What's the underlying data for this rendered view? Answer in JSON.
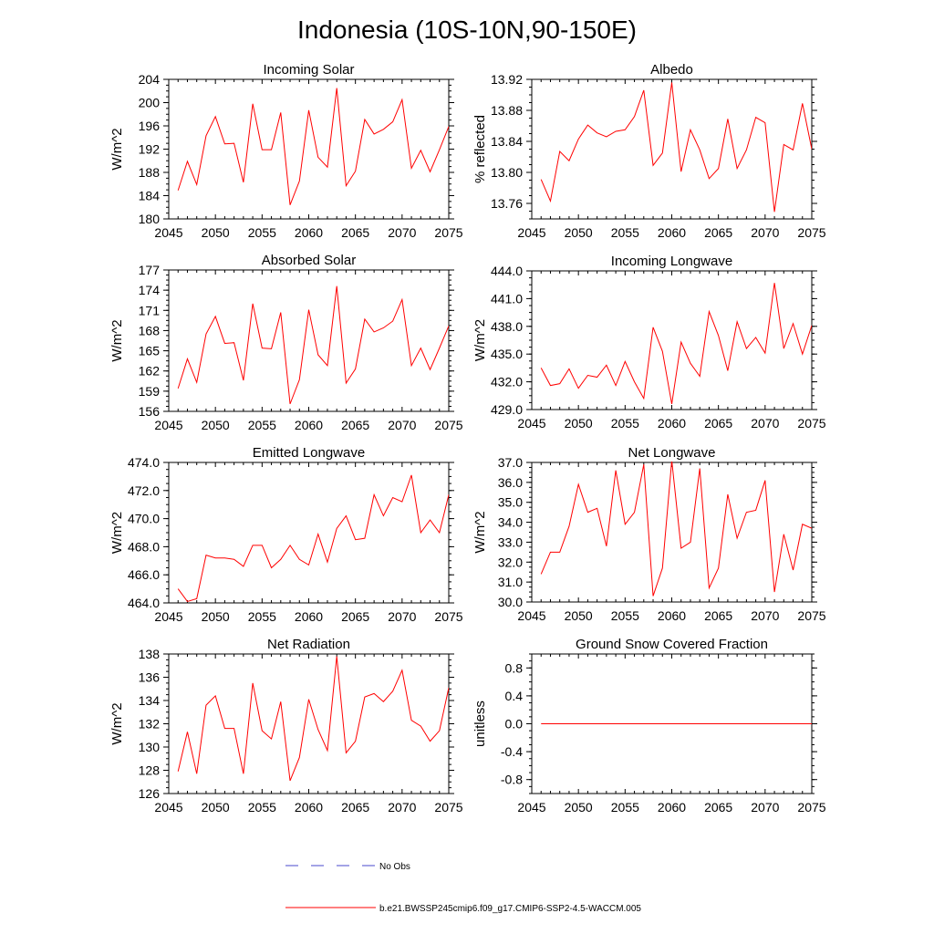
{
  "figure": {
    "title": "Indonesia (10S-10N,90-150E)"
  },
  "colors": {
    "model": "#ff0000",
    "obs": "#4a4acc",
    "axis": "#000000"
  },
  "legend": {
    "obs_label": "No Obs",
    "model_label": "b.e21.BWSSP245cmip6.f09_g17.CMIP6-SSP2-4.5-WACCM.005"
  },
  "chart_data": [
    {
      "type": "line",
      "title": "Incoming Solar",
      "xlabel": "",
      "ylabel": "W/m^2",
      "xlim": [
        2045,
        2075
      ],
      "ylim": [
        180,
        204
      ],
      "xticks": [
        2045,
        2050,
        2055,
        2060,
        2065,
        2070,
        2075
      ],
      "yticks": [
        180,
        184,
        188,
        192,
        196,
        200,
        204
      ],
      "ytick_labels": [
        "180",
        "184",
        "188",
        "192",
        "196",
        "200",
        "204"
      ],
      "series": [
        {
          "name": "b.e21.BWSSP245cmip6.f09_g17.CMIP6-SSP2-4.5-WACCM.005",
          "x": [
            2046,
            2047,
            2048,
            2049,
            2050,
            2051,
            2052,
            2053,
            2054,
            2055,
            2056,
            2057,
            2058,
            2059,
            2060,
            2061,
            2062,
            2063,
            2064,
            2065,
            2066,
            2067,
            2068,
            2069,
            2070,
            2071,
            2072,
            2073,
            2074,
            2075
          ],
          "y": [
            184.9,
            189.9,
            185.9,
            194.3,
            197.6,
            192.9,
            193.0,
            186.3,
            199.8,
            191.9,
            191.9,
            198.3,
            182.4,
            186.5,
            198.7,
            190.6,
            188.9,
            202.5,
            185.7,
            188.2,
            197.1,
            194.6,
            195.4,
            196.7,
            200.5,
            188.7,
            191.8,
            188.1,
            191.9,
            195.9
          ]
        }
      ]
    },
    {
      "type": "line",
      "title": "Albedo",
      "xlabel": "",
      "ylabel": "% reflected",
      "xlim": [
        2045,
        2075
      ],
      "ylim": [
        13.74,
        13.92
      ],
      "xticks": [
        2045,
        2050,
        2055,
        2060,
        2065,
        2070,
        2075
      ],
      "yticks": [
        13.76,
        13.8,
        13.84,
        13.88,
        13.92
      ],
      "ytick_labels": [
        "13.76",
        "13.80",
        "13.84",
        "13.88",
        "13.92"
      ],
      "series": [
        {
          "name": "b.e21.BWSSP245cmip6.f09_g17.CMIP6-SSP2-4.5-WACCM.005",
          "x": [
            2046,
            2047,
            2048,
            2049,
            2050,
            2051,
            2052,
            2053,
            2054,
            2055,
            2056,
            2057,
            2058,
            2059,
            2060,
            2061,
            2062,
            2063,
            2064,
            2065,
            2066,
            2067,
            2068,
            2069,
            2070,
            2071,
            2072,
            2073,
            2074,
            2075
          ],
          "y": [
            13.791,
            13.763,
            13.827,
            13.815,
            13.843,
            13.861,
            13.851,
            13.846,
            13.853,
            13.855,
            13.872,
            13.906,
            13.809,
            13.825,
            13.916,
            13.801,
            13.855,
            13.829,
            13.792,
            13.805,
            13.869,
            13.805,
            13.829,
            13.871,
            13.864,
            13.749,
            13.836,
            13.829,
            13.889,
            13.83
          ]
        }
      ]
    },
    {
      "type": "line",
      "title": "Absorbed Solar",
      "xlabel": "",
      "ylabel": "W/m^2",
      "xlim": [
        2045,
        2075
      ],
      "ylim": [
        156,
        177
      ],
      "xticks": [
        2045,
        2050,
        2055,
        2060,
        2065,
        2070,
        2075
      ],
      "yticks": [
        156,
        159,
        162,
        165,
        168,
        171,
        174,
        177
      ],
      "ytick_labels": [
        "156",
        "159",
        "162",
        "165",
        "168",
        "171",
        "174",
        "177"
      ],
      "series": [
        {
          "name": "b.e21.BWSSP245cmip6.f09_g17.CMIP6-SSP2-4.5-WACCM.005",
          "x": [
            2046,
            2047,
            2048,
            2049,
            2050,
            2051,
            2052,
            2053,
            2054,
            2055,
            2056,
            2057,
            2058,
            2059,
            2060,
            2061,
            2062,
            2063,
            2064,
            2065,
            2066,
            2067,
            2068,
            2069,
            2070,
            2071,
            2072,
            2073,
            2074,
            2075
          ],
          "y": [
            159.4,
            163.8,
            160.3,
            167.5,
            170.1,
            166.1,
            166.2,
            160.6,
            172.0,
            165.4,
            165.3,
            170.7,
            157.1,
            160.7,
            171.1,
            164.4,
            162.8,
            174.6,
            160.2,
            162.3,
            169.7,
            167.8,
            168.4,
            169.4,
            172.6,
            162.8,
            165.4,
            162.2,
            165.4,
            168.7
          ]
        }
      ]
    },
    {
      "type": "line",
      "title": "Incoming Longwave",
      "xlabel": "",
      "ylabel": "W/m^2",
      "xlim": [
        2045,
        2075
      ],
      "ylim": [
        429,
        444
      ],
      "xticks": [
        2045,
        2050,
        2055,
        2060,
        2065,
        2070,
        2075
      ],
      "yticks": [
        429,
        432,
        435,
        438,
        441,
        444
      ],
      "ytick_labels": [
        "429.0",
        "432.0",
        "435.0",
        "438.0",
        "441.0",
        "444.0"
      ],
      "series": [
        {
          "name": "b.e21.BWSSP245cmip6.f09_g17.CMIP6-SSP2-4.5-WACCM.005",
          "x": [
            2046,
            2047,
            2048,
            2049,
            2050,
            2051,
            2052,
            2053,
            2054,
            2055,
            2056,
            2057,
            2058,
            2059,
            2060,
            2061,
            2062,
            2063,
            2064,
            2065,
            2066,
            2067,
            2068,
            2069,
            2070,
            2071,
            2072,
            2073,
            2074,
            2075
          ],
          "y": [
            433.5,
            431.6,
            431.8,
            433.4,
            431.3,
            432.7,
            432.5,
            433.8,
            431.6,
            434.2,
            432.0,
            430.2,
            437.9,
            435.3,
            429.6,
            436.3,
            434.0,
            432.6,
            439.6,
            437.0,
            433.2,
            438.5,
            435.6,
            436.8,
            435.1,
            442.7,
            435.6,
            438.3,
            435.0,
            438.1
          ]
        }
      ]
    },
    {
      "type": "line",
      "title": "Emitted Longwave",
      "xlabel": "",
      "ylabel": "W/m^2",
      "xlim": [
        2045,
        2075
      ],
      "ylim": [
        464,
        474
      ],
      "xticks": [
        2045,
        2050,
        2055,
        2060,
        2065,
        2070,
        2075
      ],
      "yticks": [
        464,
        466,
        468,
        470,
        472,
        474
      ],
      "ytick_labels": [
        "464.0",
        "466.0",
        "468.0",
        "470.0",
        "472.0",
        "474.0"
      ],
      "series": [
        {
          "name": "b.e21.BWSSP245cmip6.f09_g17.CMIP6-SSP2-4.5-WACCM.005",
          "x": [
            2046,
            2047,
            2048,
            2049,
            2050,
            2051,
            2052,
            2053,
            2054,
            2055,
            2056,
            2057,
            2058,
            2059,
            2060,
            2061,
            2062,
            2063,
            2064,
            2065,
            2066,
            2067,
            2068,
            2069,
            2070,
            2071,
            2072,
            2073,
            2074,
            2075
          ],
          "y": [
            465.0,
            464.1,
            464.3,
            467.4,
            467.2,
            467.2,
            467.1,
            466.6,
            468.1,
            468.1,
            466.5,
            467.1,
            468.1,
            467.1,
            466.7,
            468.9,
            466.9,
            469.3,
            470.2,
            468.5,
            468.6,
            471.7,
            470.2,
            471.5,
            471.2,
            473.1,
            469.0,
            469.9,
            469.0,
            471.7
          ]
        }
      ]
    },
    {
      "type": "line",
      "title": "Net Longwave",
      "xlabel": "",
      "ylabel": "W/m^2",
      "xlim": [
        2045,
        2075
      ],
      "ylim": [
        30,
        37
      ],
      "xticks": [
        2045,
        2050,
        2055,
        2060,
        2065,
        2070,
        2075
      ],
      "yticks": [
        30,
        31,
        32,
        33,
        34,
        35,
        36,
        37
      ],
      "ytick_labels": [
        "30.0",
        "31.0",
        "32.0",
        "33.0",
        "34.0",
        "35.0",
        "36.0",
        "37.0"
      ],
      "series": [
        {
          "name": "b.e21.BWSSP245cmip6.f09_g17.CMIP6-SSP2-4.5-WACCM.005",
          "x": [
            2046,
            2047,
            2048,
            2049,
            2050,
            2051,
            2052,
            2053,
            2054,
            2055,
            2056,
            2057,
            2058,
            2059,
            2060,
            2061,
            2062,
            2063,
            2064,
            2065,
            2066,
            2067,
            2068,
            2069,
            2070,
            2071,
            2072,
            2073,
            2074,
            2075
          ],
          "y": [
            31.4,
            32.5,
            32.5,
            33.8,
            35.9,
            34.5,
            34.7,
            32.8,
            36.6,
            33.9,
            34.5,
            36.9,
            30.3,
            31.7,
            37.1,
            32.7,
            33.0,
            36.7,
            30.7,
            31.7,
            35.4,
            33.2,
            34.5,
            34.6,
            36.1,
            30.5,
            33.4,
            31.6,
            33.9,
            33.7
          ]
        }
      ]
    },
    {
      "type": "line",
      "title": "Net Radiation",
      "xlabel": "",
      "ylabel": "W/m^2",
      "xlim": [
        2045,
        2075
      ],
      "ylim": [
        126,
        138
      ],
      "xticks": [
        2045,
        2050,
        2055,
        2060,
        2065,
        2070,
        2075
      ],
      "yticks": [
        126,
        128,
        130,
        132,
        134,
        136,
        138
      ],
      "ytick_labels": [
        "126",
        "128",
        "130",
        "132",
        "134",
        "136",
        "138"
      ],
      "series": [
        {
          "name": "b.e21.BWSSP245cmip6.f09_g17.CMIP6-SSP2-4.5-WACCM.005",
          "x": [
            2046,
            2047,
            2048,
            2049,
            2050,
            2051,
            2052,
            2053,
            2054,
            2055,
            2056,
            2057,
            2058,
            2059,
            2060,
            2061,
            2062,
            2063,
            2064,
            2065,
            2066,
            2067,
            2068,
            2069,
            2070,
            2071,
            2072,
            2073,
            2074,
            2075
          ],
          "y": [
            127.9,
            131.3,
            127.7,
            133.6,
            134.4,
            131.6,
            131.6,
            127.7,
            135.5,
            131.4,
            130.7,
            133.9,
            127.1,
            129.1,
            134.1,
            131.5,
            129.7,
            137.8,
            129.5,
            130.5,
            134.3,
            134.6,
            133.9,
            134.8,
            136.6,
            132.3,
            131.8,
            130.5,
            131.4,
            135.1
          ]
        }
      ]
    },
    {
      "type": "line",
      "title": "Ground Snow Covered Fraction",
      "xlabel": "",
      "ylabel": "unitless",
      "xlim": [
        2045,
        2075
      ],
      "ylim": [
        -1.0,
        1.0
      ],
      "xticks": [
        2045,
        2050,
        2055,
        2060,
        2065,
        2070,
        2075
      ],
      "yticks": [
        -0.8,
        -0.4,
        0.0,
        0.4,
        0.8
      ],
      "ytick_labels": [
        "-0.8",
        "-0.4",
        "0.0",
        "0.4",
        "0.8"
      ],
      "series": [
        {
          "name": "b.e21.BWSSP245cmip6.f09_g17.CMIP6-SSP2-4.5-WACCM.005",
          "x": [
            2046,
            2075
          ],
          "y": [
            0.0,
            0.0
          ]
        }
      ]
    }
  ]
}
